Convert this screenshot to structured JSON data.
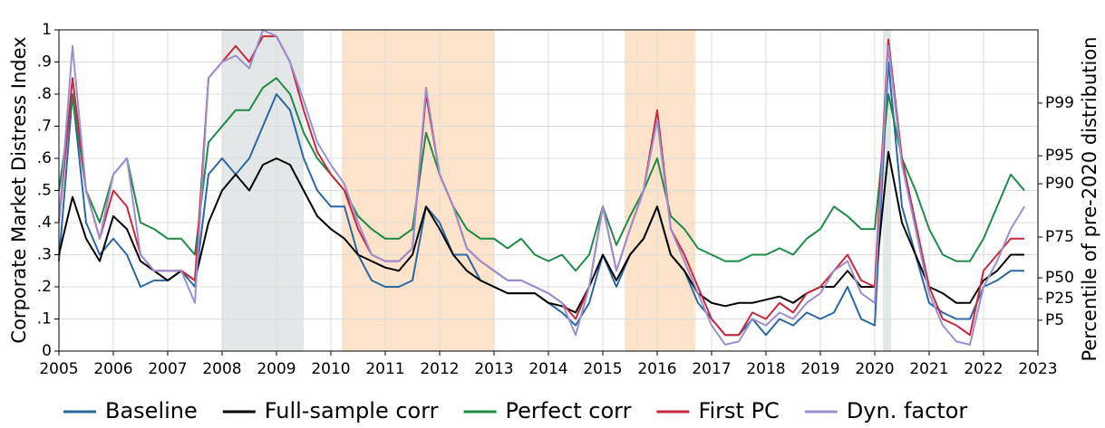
{
  "chart_data": {
    "type": "line",
    "ylabel": "Corporate Market Distress Index",
    "y2label": "Percentile of pre-2020 distribution",
    "xlim": [
      2005,
      2023
    ],
    "xticks": [
      2005,
      2006,
      2007,
      2008,
      2009,
      2010,
      2011,
      2012,
      2013,
      2014,
      2015,
      2016,
      2017,
      2018,
      2019,
      2020,
      2021,
      2022,
      2023
    ],
    "ylim": [
      0,
      1
    ],
    "yticks": [
      0,
      {
        "value": 0.1,
        "label": ".1"
      },
      {
        "value": 0.2,
        "label": ".2"
      },
      {
        "value": 0.3,
        "label": ".3"
      },
      {
        "value": 0.4,
        "label": ".4"
      },
      {
        "value": 0.5,
        "label": ".5"
      },
      {
        "value": 0.6,
        "label": ".6"
      },
      {
        "value": 0.7,
        "label": ".7"
      },
      {
        "value": 0.8,
        "label": ".8"
      },
      {
        "value": 0.9,
        "label": ".9"
      },
      1
    ],
    "y2lim": [
      0,
      1
    ],
    "y2ticks": [
      {
        "value": 0.096,
        "label": "P5"
      },
      {
        "value": 0.163,
        "label": "P25"
      },
      {
        "value": 0.228,
        "label": "P50"
      },
      {
        "value": 0.355,
        "label": "P75"
      },
      {
        "value": 0.521,
        "label": "P90"
      },
      {
        "value": 0.608,
        "label": "P95"
      },
      {
        "value": 0.772,
        "label": "P99"
      }
    ],
    "grid": true,
    "legend": "bottom",
    "shaded_regions": [
      {
        "start": 2008,
        "end": 2009.5,
        "color": "#e4e7e7"
      },
      {
        "start": 2010.2,
        "end": 2013,
        "color": "#fde3c9"
      },
      {
        "start": 2015.4,
        "end": 2016.7,
        "color": "#fde3c9"
      },
      {
        "start": 2020.15,
        "end": 2020.3,
        "color": "#e4e7e7"
      }
    ],
    "x": [
      2005,
      2005.25,
      2005.5,
      2005.75,
      2006,
      2006.25,
      2006.5,
      2006.75,
      2007,
      2007.25,
      2007.5,
      2007.75,
      2008,
      2008.25,
      2008.5,
      2008.75,
      2009,
      2009.25,
      2009.5,
      2009.75,
      2010,
      2010.25,
      2010.5,
      2010.75,
      2011,
      2011.25,
      2011.5,
      2011.75,
      2012,
      2012.25,
      2012.5,
      2012.75,
      2013,
      2013.25,
      2013.5,
      2013.75,
      2014,
      2014.25,
      2014.5,
      2014.75,
      2015,
      2015.25,
      2015.5,
      2015.75,
      2016,
      2016.25,
      2016.5,
      2016.75,
      2017,
      2017.25,
      2017.5,
      2017.75,
      2018,
      2018.25,
      2018.5,
      2018.75,
      2019,
      2019.25,
      2019.5,
      2019.75,
      2020,
      2020.25,
      2020.5,
      2020.75,
      2021,
      2021.25,
      2021.5,
      2021.75,
      2022,
      2022.25,
      2022.5,
      2022.75
    ],
    "series": [
      {
        "name": "Baseline",
        "color": "#2b67a3",
        "values": [
          0.28,
          0.8,
          0.4,
          0.3,
          0.35,
          0.3,
          0.2,
          0.22,
          0.22,
          0.25,
          0.2,
          0.55,
          0.6,
          0.55,
          0.6,
          0.7,
          0.8,
          0.75,
          0.6,
          0.5,
          0.45,
          0.45,
          0.3,
          0.22,
          0.2,
          0.2,
          0.22,
          0.45,
          0.4,
          0.3,
          0.3,
          0.22,
          0.2,
          0.18,
          0.18,
          0.18,
          0.15,
          0.12,
          0.08,
          0.15,
          0.3,
          0.2,
          0.3,
          0.35,
          0.45,
          0.3,
          0.25,
          0.15,
          0.1,
          0.05,
          0.05,
          0.1,
          0.05,
          0.1,
          0.08,
          0.12,
          0.1,
          0.12,
          0.2,
          0.1,
          0.08,
          0.9,
          0.45,
          0.3,
          0.15,
          0.12,
          0.1,
          0.1,
          0.2,
          0.22,
          0.25,
          0.25
        ]
      },
      {
        "name": "Full-sample corr",
        "color": "#000000",
        "values": [
          0.3,
          0.48,
          0.35,
          0.28,
          0.42,
          0.38,
          0.28,
          0.25,
          0.22,
          0.25,
          0.22,
          0.4,
          0.5,
          0.55,
          0.5,
          0.58,
          0.6,
          0.58,
          0.5,
          0.42,
          0.38,
          0.35,
          0.3,
          0.28,
          0.26,
          0.25,
          0.3,
          0.45,
          0.38,
          0.3,
          0.25,
          0.22,
          0.2,
          0.18,
          0.18,
          0.18,
          0.15,
          0.14,
          0.12,
          0.2,
          0.3,
          0.22,
          0.3,
          0.35,
          0.45,
          0.3,
          0.25,
          0.18,
          0.15,
          0.14,
          0.15,
          0.15,
          0.16,
          0.17,
          0.15,
          0.18,
          0.2,
          0.2,
          0.25,
          0.2,
          0.2,
          0.62,
          0.4,
          0.3,
          0.2,
          0.18,
          0.15,
          0.15,
          0.22,
          0.25,
          0.3,
          0.3
        ]
      },
      {
        "name": "Perfect corr",
        "color": "#1f8a47",
        "values": [
          0.5,
          0.8,
          0.5,
          0.4,
          0.55,
          0.6,
          0.4,
          0.38,
          0.35,
          0.35,
          0.3,
          0.65,
          0.7,
          0.75,
          0.75,
          0.82,
          0.85,
          0.8,
          0.68,
          0.6,
          0.55,
          0.5,
          0.42,
          0.38,
          0.35,
          0.35,
          0.38,
          0.68,
          0.55,
          0.45,
          0.38,
          0.35,
          0.35,
          0.32,
          0.35,
          0.3,
          0.28,
          0.3,
          0.25,
          0.3,
          0.45,
          0.33,
          0.42,
          0.5,
          0.6,
          0.42,
          0.38,
          0.32,
          0.3,
          0.28,
          0.28,
          0.3,
          0.3,
          0.32,
          0.3,
          0.35,
          0.38,
          0.45,
          0.42,
          0.38,
          0.38,
          0.8,
          0.6,
          0.5,
          0.38,
          0.3,
          0.28,
          0.28,
          0.35,
          0.45,
          0.55,
          0.5
        ]
      },
      {
        "name": "First PC",
        "color": "#c9283d",
        "values": [
          0.4,
          0.85,
          0.5,
          0.35,
          0.5,
          0.45,
          0.3,
          0.25,
          0.25,
          0.25,
          0.22,
          0.85,
          0.9,
          0.95,
          0.9,
          0.98,
          0.98,
          0.9,
          0.75,
          0.62,
          0.55,
          0.5,
          0.38,
          0.3,
          0.28,
          0.28,
          0.32,
          0.8,
          0.55,
          0.45,
          0.32,
          0.28,
          0.25,
          0.22,
          0.22,
          0.2,
          0.18,
          0.15,
          0.1,
          0.2,
          0.45,
          0.25,
          0.38,
          0.5,
          0.75,
          0.38,
          0.3,
          0.2,
          0.1,
          0.05,
          0.05,
          0.12,
          0.1,
          0.15,
          0.12,
          0.18,
          0.2,
          0.25,
          0.3,
          0.22,
          0.2,
          0.97,
          0.6,
          0.4,
          0.2,
          0.1,
          0.08,
          0.05,
          0.25,
          0.3,
          0.35,
          0.35
        ]
      },
      {
        "name": "Dyn. factor",
        "color": "#9b8fd2",
        "values": [
          0.4,
          0.95,
          0.5,
          0.35,
          0.55,
          0.6,
          0.3,
          0.25,
          0.25,
          0.25,
          0.15,
          0.85,
          0.9,
          0.92,
          0.88,
          1.0,
          0.98,
          0.9,
          0.78,
          0.65,
          0.58,
          0.52,
          0.4,
          0.3,
          0.28,
          0.28,
          0.32,
          0.82,
          0.55,
          0.45,
          0.32,
          0.28,
          0.25,
          0.22,
          0.22,
          0.2,
          0.18,
          0.15,
          0.05,
          0.2,
          0.45,
          0.25,
          0.38,
          0.5,
          0.72,
          0.38,
          0.28,
          0.18,
          0.08,
          0.02,
          0.03,
          0.1,
          0.08,
          0.12,
          0.1,
          0.15,
          0.18,
          0.25,
          0.28,
          0.18,
          0.15,
          0.95,
          0.58,
          0.38,
          0.18,
          0.08,
          0.03,
          0.02,
          0.2,
          0.28,
          0.38,
          0.45
        ]
      }
    ]
  }
}
